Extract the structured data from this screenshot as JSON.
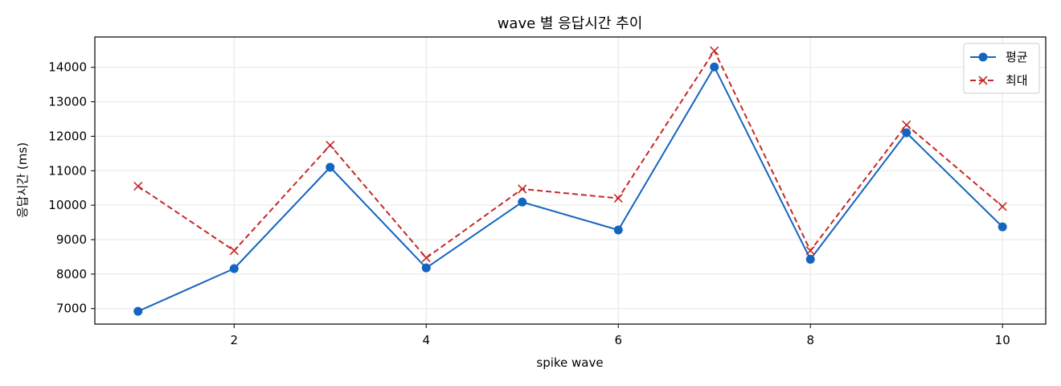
{
  "chart_data": {
    "type": "line",
    "title": "wave 별 응답시간 추이",
    "xlabel": "spike wave",
    "ylabel": "응답시간 (ms)",
    "x": [
      1,
      2,
      3,
      4,
      5,
      6,
      7,
      8,
      9,
      10
    ],
    "x_ticks": [
      "2",
      "4",
      "6",
      "8",
      "10"
    ],
    "x_tick_values": [
      2,
      4,
      6,
      8,
      10
    ],
    "y_ticks": [
      "7000",
      "8000",
      "9000",
      "10000",
      "11000",
      "12000",
      "13000",
      "14000"
    ],
    "y_tick_values": [
      7000,
      8000,
      9000,
      10000,
      11000,
      12000,
      13000,
      14000
    ],
    "xlim": [
      0.55,
      10.45
    ],
    "ylim": [
      6550,
      14880
    ],
    "grid": true,
    "legend_position": "top-right",
    "series": [
      {
        "name": "평균",
        "color": "#1565c0",
        "line_style": "solid",
        "marker": "circle",
        "values": [
          6920,
          8160,
          11100,
          8180,
          10090,
          9280,
          14010,
          8430,
          12100,
          9370
        ]
      },
      {
        "name": "최대",
        "color": "#c62828",
        "line_style": "dashed",
        "marker": "x",
        "values": [
          10550,
          8680,
          11740,
          8470,
          10470,
          10200,
          14480,
          8680,
          12330,
          9960
        ]
      }
    ]
  }
}
